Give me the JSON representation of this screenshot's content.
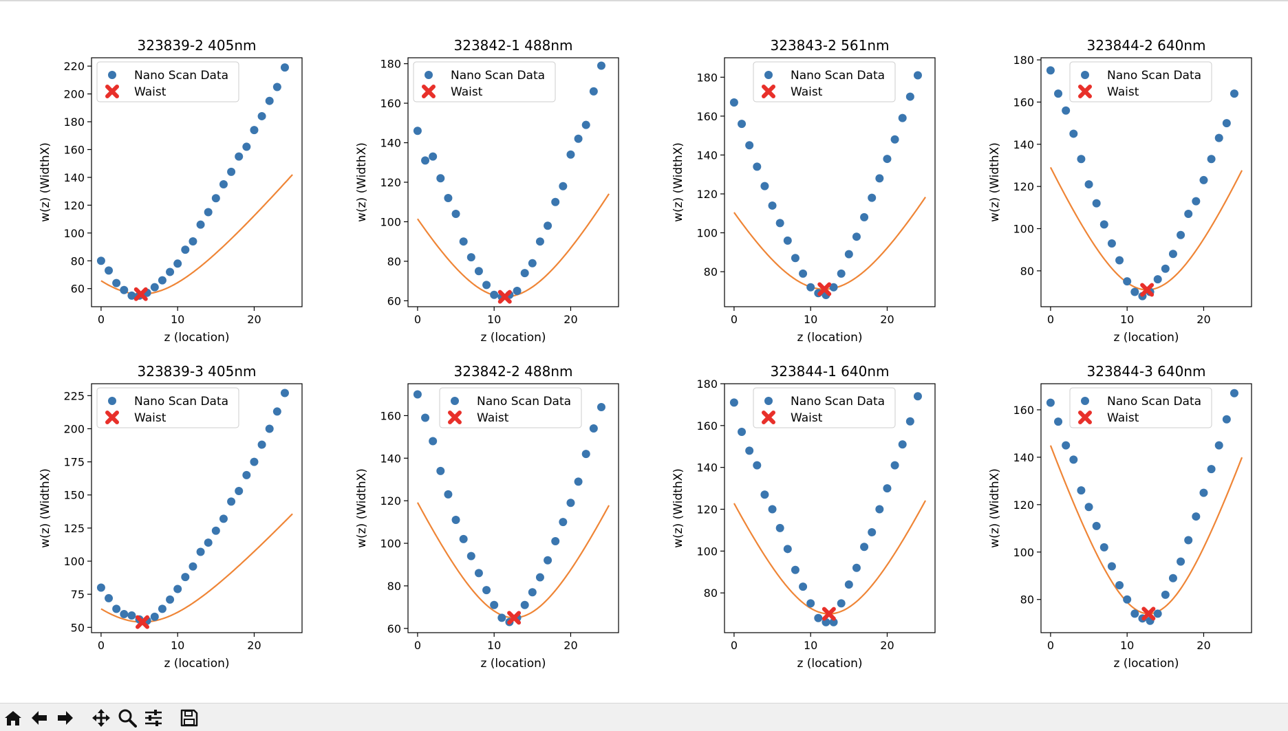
{
  "colors": {
    "scatter": "#3a76af",
    "fit_line": "#ef8536",
    "waist": "#e8302a",
    "axis": "#000000",
    "legend_border": "#cccccc",
    "toolbar_bg": "#f0f0f0"
  },
  "legend": {
    "placement": "upper-left-inside",
    "scan_label": "Nano Scan Data",
    "waist_label": "Waist"
  },
  "toolbar": {
    "icons": [
      "home-icon",
      "back-arrow-icon",
      "forward-arrow-icon",
      "pan-icon",
      "zoom-icon",
      "configure-subplots-icon",
      "save-icon"
    ]
  },
  "chart_data": [
    {
      "type": "scatter",
      "title": "323839-2 405nm",
      "xlabel": "z (location)",
      "ylabel": "w(z) (WidthX)",
      "xlim": [
        -1.25,
        26.25
      ],
      "ylim": [
        47,
        226
      ],
      "xticks": [
        0,
        10,
        20
      ],
      "yticks": [
        60,
        80,
        100,
        120,
        140,
        160,
        180,
        200,
        220
      ],
      "legend_offset": 0,
      "series": [
        {
          "name": "Nano Scan Data",
          "x": [
            0,
            1,
            2,
            3,
            4,
            5,
            6,
            7,
            8,
            9,
            10,
            11,
            12,
            13,
            14,
            15,
            16,
            17,
            18,
            19,
            20,
            21,
            22,
            23,
            24,
            25
          ],
          "y": [
            80,
            73,
            64,
            59,
            55,
            55,
            57,
            61,
            66,
            72,
            78,
            88,
            94,
            106,
            115,
            125,
            135,
            144,
            155,
            162,
            174,
            184,
            195,
            205,
            219,
            null
          ]
        },
        {
          "name": "Waist",
          "x": [
            5.2
          ],
          "y": [
            56
          ]
        }
      ],
      "fit": {
        "x0": 5.2,
        "w0": 56,
        "k": 8.5,
        "xmin": 0,
        "xmax": 25
      }
    },
    {
      "type": "scatter",
      "title": "323842-1 488nm",
      "xlabel": "z (location)",
      "ylabel": "w(z) (WidthX)",
      "xlim": [
        -1.25,
        26.25
      ],
      "ylim": [
        57,
        183
      ],
      "xticks": [
        0,
        10,
        20
      ],
      "yticks": [
        60,
        80,
        100,
        120,
        140,
        160,
        180
      ],
      "legend_offset": 0,
      "series": [
        {
          "name": "Nano Scan Data",
          "x": [
            0,
            1,
            2,
            3,
            4,
            5,
            6,
            7,
            8,
            9,
            10,
            11,
            12,
            13,
            14,
            15,
            16,
            17,
            18,
            19,
            20,
            21,
            22,
            23,
            24,
            25
          ],
          "y": [
            146,
            131,
            133,
            122,
            112,
            104,
            90,
            82,
            75,
            68,
            63,
            62,
            63,
            65,
            74,
            79,
            90,
            98,
            110,
            118,
            134,
            142,
            149,
            166,
            179,
            null
          ]
        },
        {
          "name": "Waist",
          "x": [
            11.4
          ],
          "y": [
            62
          ]
        }
      ],
      "fit": {
        "x0": 11.4,
        "w0": 62,
        "k": 8.8,
        "xmin": 0,
        "xmax": 25
      }
    },
    {
      "type": "scatter",
      "title": "323843-2 561nm",
      "xlabel": "z (location)",
      "ylabel": "w(z) (WidthX)",
      "xlim": [
        -1.25,
        26.25
      ],
      "ylim": [
        62,
        190
      ],
      "xticks": [
        0,
        10,
        20
      ],
      "yticks": [
        80,
        100,
        120,
        140,
        160,
        180
      ],
      "legend_offset": 34,
      "series": [
        {
          "name": "Nano Scan Data",
          "x": [
            0,
            1,
            2,
            3,
            4,
            5,
            6,
            7,
            8,
            9,
            10,
            11,
            12,
            13,
            14,
            15,
            16,
            17,
            18,
            19,
            20,
            21,
            22,
            23,
            24,
            25
          ],
          "y": [
            167,
            156,
            145,
            134,
            124,
            114,
            105,
            96,
            87,
            79,
            72,
            69,
            68,
            72,
            79,
            89,
            98,
            108,
            118,
            128,
            138,
            148,
            159,
            170,
            181,
            null
          ]
        },
        {
          "name": "Waist",
          "x": [
            11.8
          ],
          "y": [
            71
          ]
        }
      ],
      "fit": {
        "x0": 11.8,
        "w0": 71,
        "k": 9.9,
        "xmin": 0,
        "xmax": 25
      }
    },
    {
      "type": "scatter",
      "title": "323844-2 640nm",
      "xlabel": "z (location)",
      "ylabel": "w(z) (WidthX)",
      "xlim": [
        -1.25,
        26.25
      ],
      "ylim": [
        63,
        181
      ],
      "xticks": [
        0,
        10,
        20
      ],
      "yticks": [
        80,
        100,
        120,
        140,
        160,
        180
      ],
      "legend_offset": 34,
      "series": [
        {
          "name": "Nano Scan Data",
          "x": [
            0,
            1,
            2,
            3,
            4,
            5,
            6,
            7,
            8,
            9,
            10,
            11,
            12,
            13,
            14,
            15,
            16,
            17,
            18,
            19,
            20,
            21,
            22,
            23,
            24,
            25
          ],
          "y": [
            175,
            164,
            156,
            145,
            133,
            121,
            112,
            102,
            93,
            85,
            75,
            70,
            68,
            70,
            76,
            81,
            88,
            97,
            107,
            113,
            123,
            133,
            143,
            150,
            164,
            null
          ]
        },
        {
          "name": "Waist",
          "x": [
            12.6
          ],
          "y": [
            71
          ]
        }
      ],
      "fit": {
        "x0": 12.6,
        "w0": 71,
        "k": 8.3,
        "xmin": 0,
        "xmax": 25
      }
    },
    {
      "type": "scatter",
      "title": "323839-3 405nm",
      "xlabel": "z (location)",
      "ylabel": "w(z) (WidthX)",
      "xlim": [
        -1.25,
        26.25
      ],
      "ylim": [
        46,
        234
      ],
      "xticks": [
        0,
        10,
        20
      ],
      "yticks": [
        50,
        75,
        100,
        125,
        150,
        175,
        200,
        225
      ],
      "legend_offset": 0,
      "series": [
        {
          "name": "Nano Scan Data",
          "x": [
            0,
            1,
            2,
            3,
            4,
            5,
            6,
            7,
            8,
            9,
            10,
            11,
            12,
            13,
            14,
            15,
            16,
            17,
            18,
            19,
            20,
            21,
            22,
            23,
            24,
            25
          ],
          "y": [
            80,
            72,
            64,
            60,
            59,
            56,
            55,
            58,
            64,
            71,
            79,
            88,
            96,
            107,
            114,
            123,
            132,
            145,
            153,
            165,
            175,
            188,
            200,
            213,
            227,
            null
          ]
        },
        {
          "name": "Waist",
          "x": [
            5.4
          ],
          "y": [
            54
          ]
        }
      ],
      "fit": {
        "x0": 5.4,
        "w0": 54,
        "k": 8.5,
        "xmin": 0,
        "xmax": 25
      }
    },
    {
      "type": "scatter",
      "title": "323842-2 488nm",
      "xlabel": "z (location)",
      "ylabel": "w(z) (WidthX)",
      "xlim": [
        -1.25,
        26.25
      ],
      "ylim": [
        58,
        175
      ],
      "xticks": [
        0,
        10,
        20
      ],
      "yticks": [
        60,
        80,
        100,
        120,
        140,
        160
      ],
      "legend_offset": 38,
      "series": [
        {
          "name": "Nano Scan Data",
          "x": [
            0,
            1,
            2,
            3,
            4,
            5,
            6,
            7,
            8,
            9,
            10,
            11,
            12,
            13,
            14,
            15,
            16,
            17,
            18,
            19,
            20,
            21,
            22,
            23,
            24,
            25
          ],
          "y": [
            170,
            159,
            148,
            134,
            123,
            111,
            102,
            94,
            86,
            78,
            71,
            65,
            63,
            65,
            71,
            77,
            84,
            92,
            101,
            110,
            119,
            129,
            142,
            154,
            164,
            null
          ]
        },
        {
          "name": "Waist",
          "x": [
            12.6
          ],
          "y": [
            65
          ]
        }
      ],
      "fit": {
        "x0": 12.6,
        "w0": 65,
        "k": 8.2,
        "xmin": 0,
        "xmax": 25
      }
    },
    {
      "type": "scatter",
      "title": "323844-1 640nm",
      "xlabel": "z (location)",
      "ylabel": "w(z) (WidthX)",
      "xlim": [
        -1.25,
        26.25
      ],
      "ylim": [
        61,
        180
      ],
      "xticks": [
        0,
        10,
        20
      ],
      "yticks": [
        80,
        100,
        120,
        140,
        160,
        180
      ],
      "legend_offset": 34,
      "series": [
        {
          "name": "Nano Scan Data",
          "x": [
            0,
            1,
            2,
            3,
            4,
            5,
            6,
            7,
            8,
            9,
            10,
            11,
            12,
            13,
            14,
            15,
            16,
            17,
            18,
            19,
            20,
            21,
            22,
            23,
            24,
            25
          ],
          "y": [
            171,
            157,
            148,
            141,
            127,
            120,
            111,
            101,
            91,
            83,
            75,
            68,
            66,
            66,
            75,
            84,
            92,
            102,
            109,
            120,
            130,
            141,
            151,
            162,
            174,
            null
          ]
        },
        {
          "name": "Waist",
          "x": [
            12.4
          ],
          "y": [
            70
          ]
        }
      ],
      "fit": {
        "x0": 12.4,
        "w0": 70,
        "k": 8.6,
        "xmin": 0,
        "xmax": 25
      }
    },
    {
      "type": "scatter",
      "title": "323844-3 640nm",
      "xlabel": "z (location)",
      "ylabel": "w(z) (WidthX)",
      "xlim": [
        -1.25,
        26.25
      ],
      "ylim": [
        66,
        171
      ],
      "xticks": [
        0,
        10,
        20
      ],
      "yticks": [
        80,
        100,
        120,
        140,
        160
      ],
      "legend_offset": 34,
      "series": [
        {
          "name": "Nano Scan Data",
          "x": [
            0,
            1,
            2,
            3,
            4,
            5,
            6,
            7,
            8,
            9,
            10,
            11,
            12,
            13,
            14,
            15,
            16,
            17,
            18,
            19,
            20,
            21,
            22,
            23,
            24,
            25
          ],
          "y": [
            163,
            155,
            145,
            139,
            126,
            119,
            111,
            102,
            94,
            86,
            80,
            74,
            72,
            71,
            74,
            82,
            89,
            96,
            105,
            115,
            125,
            135,
            145,
            156,
            167,
            null
          ]
        },
        {
          "name": "Waist",
          "x": [
            12.8
          ],
          "y": [
            74
          ]
        }
      ],
      "fit": {
        "x0": 12.8,
        "w0": 74,
        "k": 7.6,
        "xmin": 0,
        "xmax": 25
      }
    }
  ]
}
